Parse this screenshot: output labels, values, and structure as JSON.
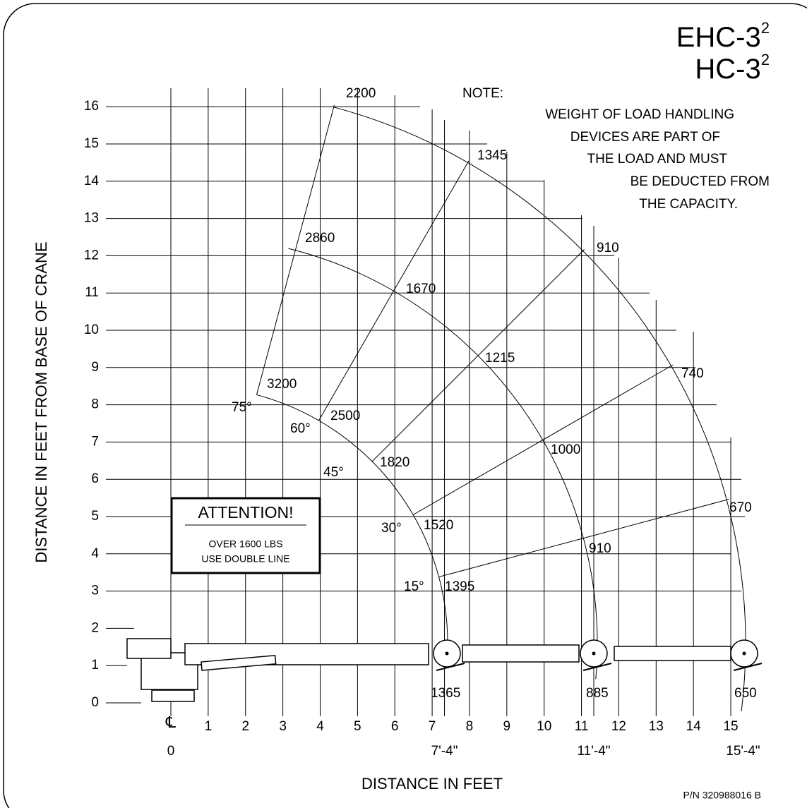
{
  "title": [
    {
      "text": "EHC-3",
      "sup": "2"
    },
    {
      "text": "HC-3",
      "sup": "2"
    }
  ],
  "note": {
    "heading": "NOTE:",
    "lines": [
      "WEIGHT OF LOAD HANDLING",
      "DEVICES ARE PART OF",
      "THE LOAD AND MUST",
      "BE DEDUCTED FROM",
      "THE CAPACITY."
    ]
  },
  "y_axis": {
    "label": "DISTANCE IN FEET FROM BASE OF CRANE",
    "ticks": [
      0,
      1,
      2,
      3,
      4,
      5,
      6,
      7,
      8,
      9,
      10,
      11,
      12,
      13,
      14,
      15,
      16
    ]
  },
  "x_axis": {
    "label": "DISTANCE IN FEET",
    "centerline": "℄",
    "zero": "0",
    "ticks": [
      1,
      2,
      3,
      4,
      5,
      6,
      7,
      8,
      9,
      10,
      11,
      12,
      13,
      14,
      15
    ],
    "reach_labels": [
      "7'-4\"",
      "11'-4\"",
      "15'-4\""
    ]
  },
  "capacities": [
    "2200",
    "1345",
    "910",
    "740",
    "670",
    "2860",
    "1670",
    "1215",
    "1000",
    "910",
    "3200",
    "2500",
    "1820",
    "1520",
    "1395",
    "1365",
    "885",
    "650"
  ],
  "angles": [
    "75°",
    "60°",
    "45°",
    "30°",
    "15°"
  ],
  "attention": {
    "heading": "ATTENTION!",
    "lines": [
      "OVER 1600 LBS",
      "USE DOUBLE LINE"
    ]
  },
  "part_number": "P/N 320988016 B"
}
